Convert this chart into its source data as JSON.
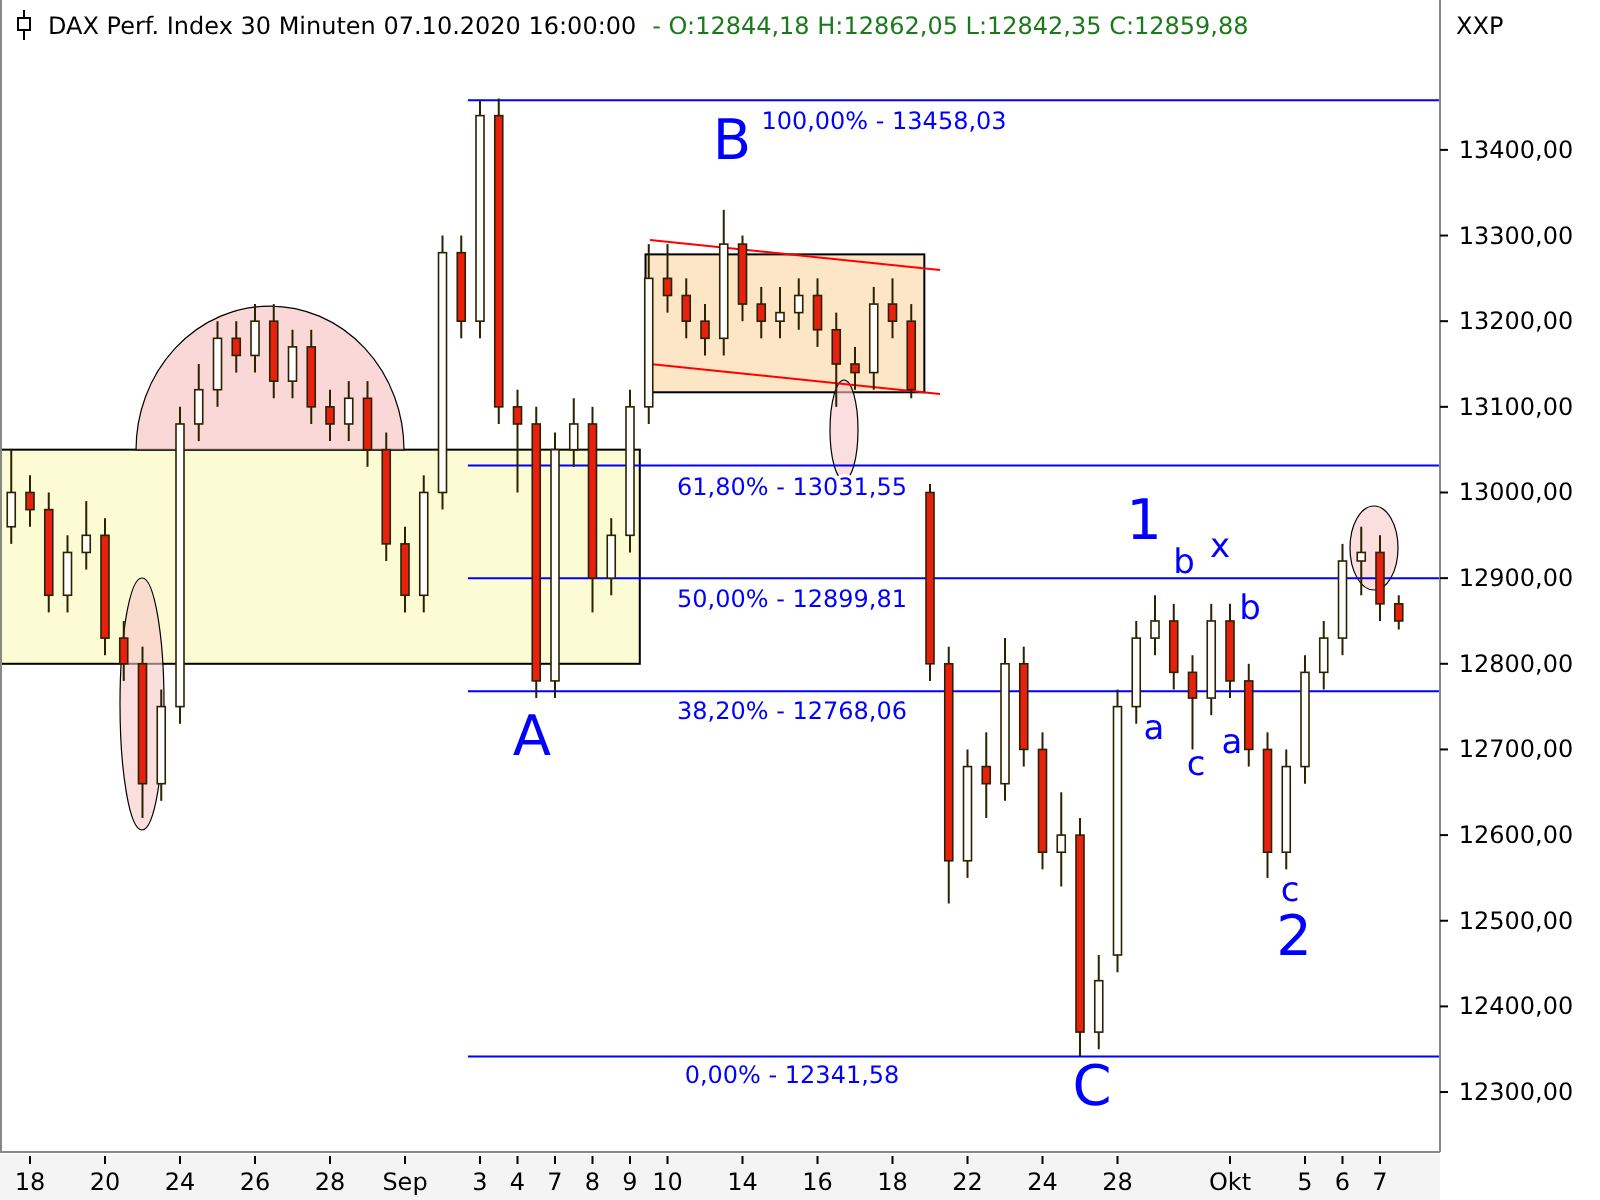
{
  "chart_data": {
    "type": "candlestick",
    "title": "DAX Perf. Index 30 Minuten  07.10.2020 16:00:00",
    "subtitle": "- O:12844,18 H:12862,05 L:12842,35 C:12859,88",
    "categories": [
      null,
      "18",
      null,
      null,
      null,
      "20",
      null,
      null,
      null,
      "24",
      null,
      null,
      null,
      "26",
      null,
      null,
      null,
      "28",
      null,
      null,
      null,
      "Sep",
      null,
      null,
      null,
      "3",
      null,
      "4",
      null,
      "7",
      null,
      "8",
      null,
      "9",
      null,
      "10",
      null,
      null,
      null,
      "14",
      null,
      null,
      null,
      "16",
      null,
      null,
      null,
      "18",
      null,
      null,
      null,
      "22",
      null,
      null,
      null,
      "24",
      null,
      null,
      null,
      "28",
      null,
      null,
      null,
      null,
      null,
      "Okt",
      null,
      null,
      null,
      "5",
      null,
      "6",
      null,
      "7",
      null
    ],
    "ohlc": [
      [
        12960,
        13050,
        12940,
        13000
      ],
      [
        13000,
        13020,
        12960,
        12980
      ],
      [
        12980,
        13000,
        12860,
        12880
      ],
      [
        12880,
        12950,
        12860,
        12930
      ],
      [
        12930,
        12990,
        12910,
        12950
      ],
      [
        12950,
        12970,
        12810,
        12830
      ],
      [
        12830,
        12850,
        12780,
        12800
      ],
      [
        12800,
        12820,
        12620,
        12660
      ],
      [
        12660,
        12770,
        12640,
        12750
      ],
      [
        12750,
        13100,
        12730,
        13080
      ],
      [
        13080,
        13150,
        13060,
        13120
      ],
      [
        13120,
        13200,
        13100,
        13180
      ],
      [
        13180,
        13200,
        13140,
        13160
      ],
      [
        13160,
        13220,
        13140,
        13200
      ],
      [
        13200,
        13220,
        13110,
        13130
      ],
      [
        13130,
        13190,
        13110,
        13170
      ],
      [
        13170,
        13190,
        13080,
        13100
      ],
      [
        13100,
        13120,
        13060,
        13080
      ],
      [
        13080,
        13130,
        13060,
        13110
      ],
      [
        13110,
        13130,
        13030,
        13050
      ],
      [
        13050,
        13070,
        12920,
        12940
      ],
      [
        12940,
        12960,
        12860,
        12880
      ],
      [
        12880,
        13020,
        12860,
        13000
      ],
      [
        13000,
        13300,
        12980,
        13280
      ],
      [
        13280,
        13300,
        13180,
        13200
      ],
      [
        13200,
        13458,
        13180,
        13440
      ],
      [
        13440,
        13460,
        13080,
        13100
      ],
      [
        13100,
        13120,
        13000,
        13080
      ],
      [
        13080,
        13100,
        12760,
        12780
      ],
      [
        12780,
        13070,
        12760,
        13050
      ],
      [
        13050,
        13110,
        13030,
        13080
      ],
      [
        13080,
        13100,
        12860,
        12900
      ],
      [
        12900,
        12970,
        12880,
        12950
      ],
      [
        12950,
        13120,
        12930,
        13100
      ],
      [
        13100,
        13290,
        13080,
        13250
      ],
      [
        13250,
        13290,
        13210,
        13230
      ],
      [
        13230,
        13250,
        13180,
        13200
      ],
      [
        13200,
        13220,
        13160,
        13180
      ],
      [
        13180,
        13330,
        13160,
        13290
      ],
      [
        13290,
        13300,
        13200,
        13220
      ],
      [
        13220,
        13240,
        13180,
        13200
      ],
      [
        13200,
        13240,
        13180,
        13210
      ],
      [
        13210,
        13250,
        13190,
        13230
      ],
      [
        13230,
        13250,
        13170,
        13190
      ],
      [
        13190,
        13210,
        13100,
        13150
      ],
      [
        13150,
        13170,
        13120,
        13140
      ],
      [
        13140,
        13240,
        13120,
        13220
      ],
      [
        13220,
        13250,
        13180,
        13200
      ],
      [
        13200,
        13220,
        13110,
        13120
      ],
      [
        13000,
        13010,
        12780,
        12800
      ],
      [
        12800,
        12820,
        12520,
        12570
      ],
      [
        12570,
        12700,
        12550,
        12680
      ],
      [
        12680,
        12720,
        12620,
        12660
      ],
      [
        12660,
        12830,
        12640,
        12800
      ],
      [
        12800,
        12820,
        12680,
        12700
      ],
      [
        12700,
        12720,
        12560,
        12580
      ],
      [
        12580,
        12650,
        12540,
        12600
      ],
      [
        12600,
        12620,
        12342,
        12370
      ],
      [
        12370,
        12460,
        12350,
        12430
      ],
      [
        12460,
        12770,
        12440,
        12750
      ],
      [
        12750,
        12850,
        12730,
        12830
      ],
      [
        12830,
        12880,
        12810,
        12850
      ],
      [
        12850,
        12870,
        12770,
        12790
      ],
      [
        12790,
        12810,
        12700,
        12760
      ],
      [
        12760,
        12870,
        12740,
        12850
      ],
      [
        12850,
        12870,
        12760,
        12780
      ],
      [
        12780,
        12800,
        12680,
        12700
      ],
      [
        12700,
        12720,
        12550,
        12580
      ],
      [
        12580,
        12700,
        12560,
        12680
      ],
      [
        12680,
        12810,
        12660,
        12790
      ],
      [
        12790,
        12850,
        12770,
        12830
      ],
      [
        12830,
        12940,
        12810,
        12920
      ],
      [
        12920,
        12960,
        12880,
        12930
      ],
      [
        12930,
        12950,
        12850,
        12870
      ],
      [
        12870,
        12880,
        12840,
        12850
      ]
    ],
    "ylim": [
      12230,
      13575
    ],
    "yticks": [
      {
        "value": 12300,
        "label": "12300,00"
      },
      {
        "value": 12400,
        "label": "12400,00"
      },
      {
        "value": 12500,
        "label": "12500,00"
      },
      {
        "value": 12600,
        "label": "12600,00"
      },
      {
        "value": 12700,
        "label": "12700,00"
      },
      {
        "value": 12800,
        "label": "12800,00"
      },
      {
        "value": 12900,
        "label": "12900,00"
      },
      {
        "value": 13000,
        "label": "13000,00"
      },
      {
        "value": 13100,
        "label": "13100,00"
      },
      {
        "value": 13200,
        "label": "13200,00"
      },
      {
        "value": 13300,
        "label": "13300,00"
      },
      {
        "value": 13400,
        "label": "13400,00"
      }
    ],
    "ref_lines": [
      {
        "axis": "y",
        "value": 13458.03,
        "color": "#0000ff"
      },
      {
        "axis": "y",
        "value": 13031.55,
        "color": "#0000ff"
      },
      {
        "axis": "y",
        "value": 12899.81,
        "color": "#0000ff"
      },
      {
        "axis": "y",
        "value": 12768.06,
        "color": "#0000ff"
      },
      {
        "axis": "y",
        "value": 12341.58,
        "color": "#0000ff"
      }
    ],
    "annotations": [
      "XXP",
      "A",
      "B",
      "C",
      "1",
      "2",
      "a",
      "b",
      "x",
      "c",
      "a",
      "b",
      "c",
      "100,00% - 13458,03",
      "61,80% - 13031,55",
      "50,00% - 12899,81",
      "38,20% - 12768,06",
      "0,00% - 12341,58"
    ]
  }
}
